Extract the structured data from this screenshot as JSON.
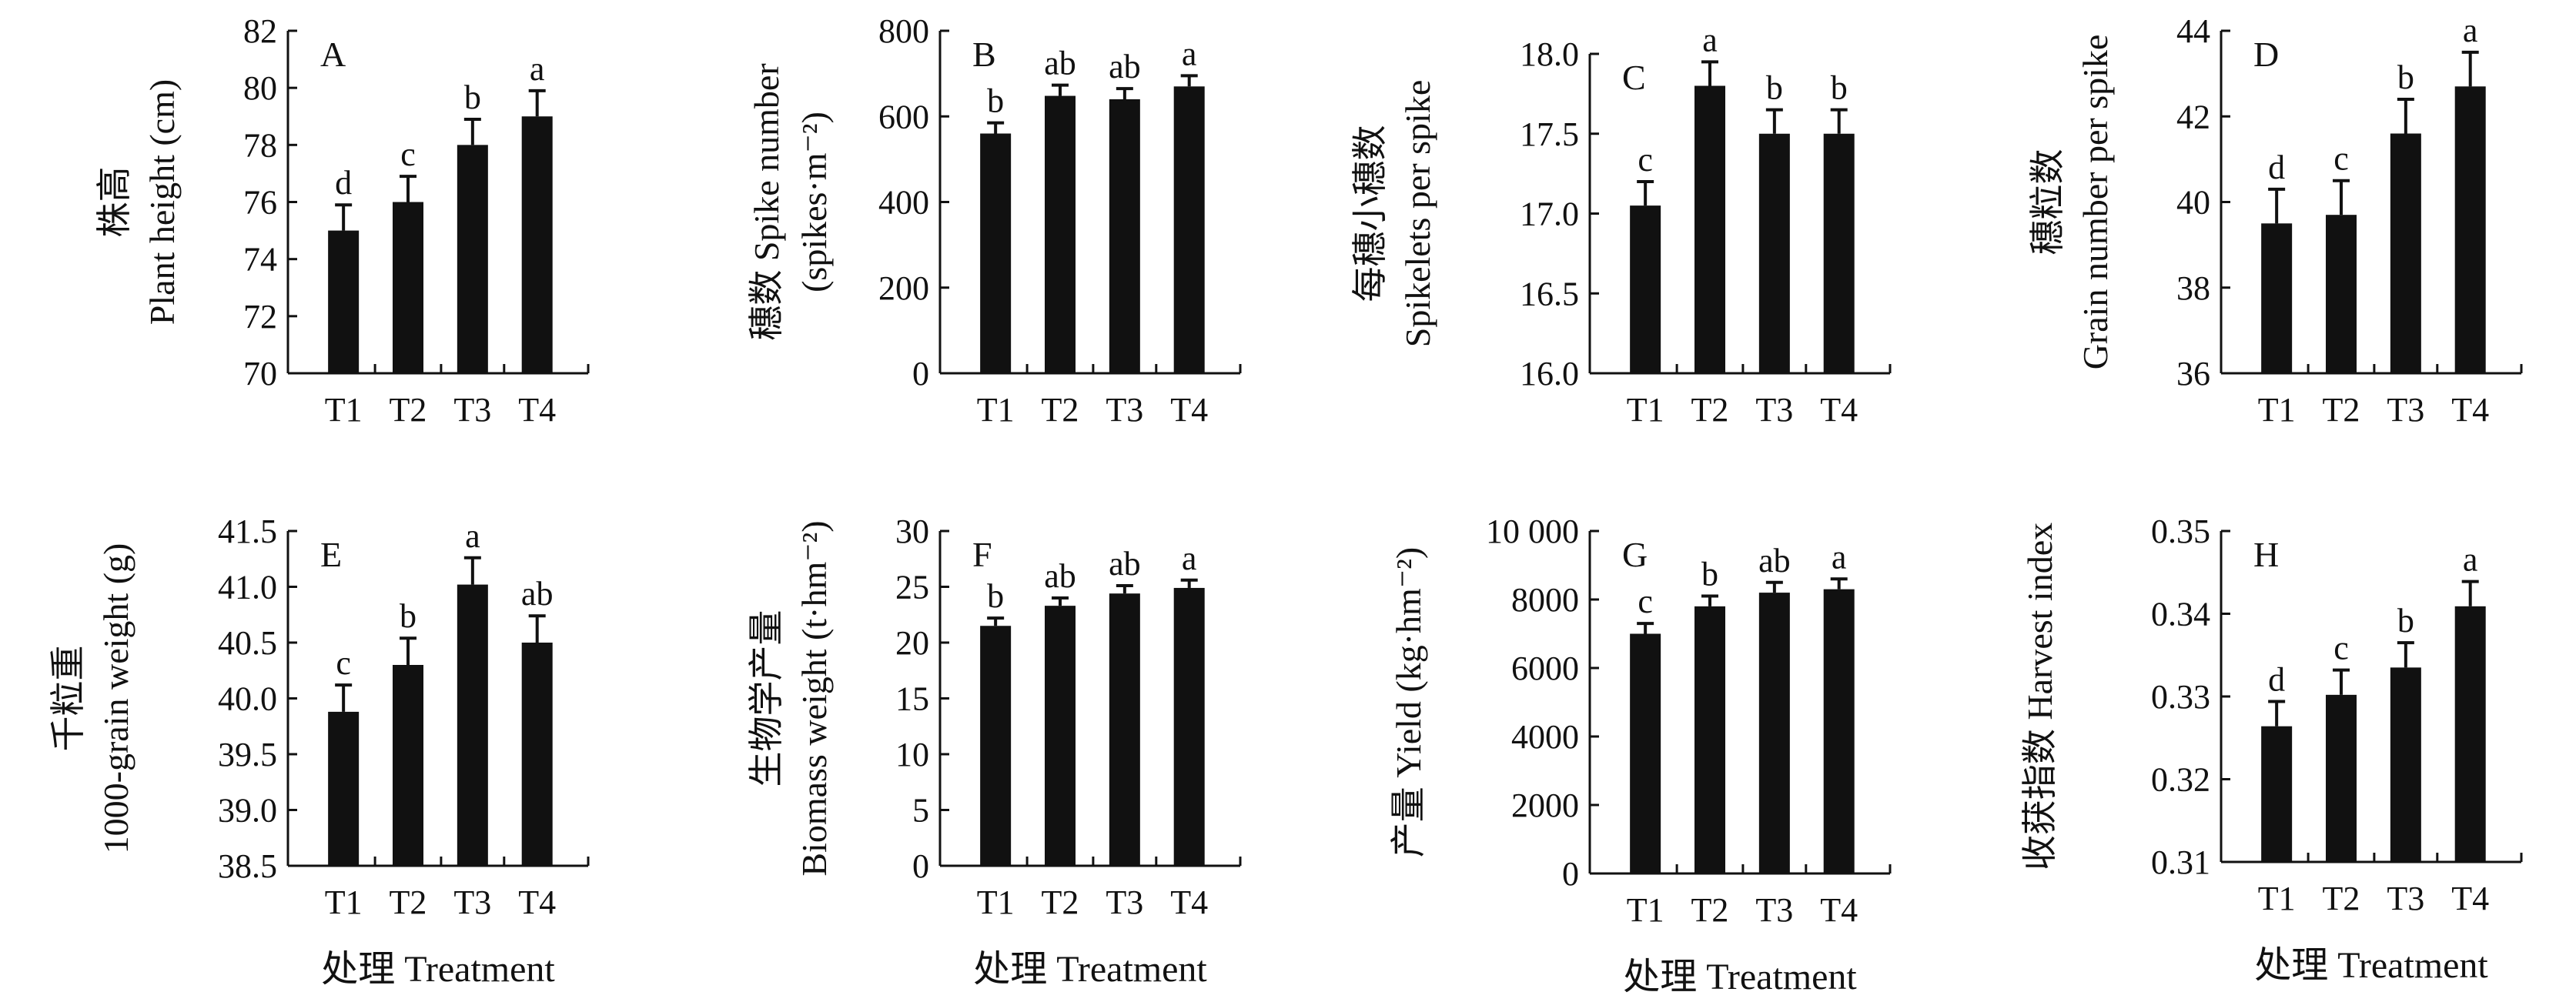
{
  "chart_data": [
    {
      "panel": "A",
      "type": "bar",
      "categories": [
        "T1",
        "T2",
        "T3",
        "T4"
      ],
      "values": [
        75.0,
        76.0,
        78.0,
        79.0
      ],
      "errors": [
        0.9,
        0.9,
        0.9,
        0.9
      ],
      "significance": [
        "d",
        "c",
        "b",
        "a"
      ],
      "ylabel_cn": "株高",
      "ylabel_en": "Plant height (cm)",
      "xlabel": "",
      "ylim": [
        70,
        82
      ],
      "yticks": [
        "70",
        "72",
        "74",
        "76",
        "78",
        "80",
        "82"
      ]
    },
    {
      "panel": "B",
      "type": "bar",
      "categories": [
        "T1",
        "T2",
        "T3",
        "T4"
      ],
      "values": [
        560,
        648,
        640,
        670
      ],
      "errors": [
        25,
        25,
        25,
        25
      ],
      "significance": [
        "b",
        "ab",
        "ab",
        "a"
      ],
      "ylabel_cn": "穗数 Spike number",
      "ylabel_en": "(spikes·m⁻²)",
      "xlabel": "",
      "ylim": [
        0,
        800
      ],
      "yticks": [
        "0",
        "200",
        "400",
        "600",
        "800"
      ]
    },
    {
      "panel": "C",
      "type": "bar",
      "categories": [
        "T1",
        "T2",
        "T3",
        "T4"
      ],
      "values": [
        17.05,
        17.8,
        17.5,
        17.5
      ],
      "errors": [
        0.15,
        0.15,
        0.15,
        0.15
      ],
      "significance": [
        "c",
        "a",
        "b",
        "b"
      ],
      "ylabel_cn": "每穗小穗数",
      "ylabel_en": "Spikelets per spike",
      "xlabel": "",
      "ylim": [
        16.0,
        18.0
      ],
      "yticks": [
        "16.0",
        "16.5",
        "17.0",
        "17.5",
        "18.0"
      ]
    },
    {
      "panel": "D",
      "type": "bar",
      "categories": [
        "T1",
        "T2",
        "T3",
        "T4"
      ],
      "values": [
        39.5,
        39.7,
        41.6,
        42.7
      ],
      "errors": [
        0.8,
        0.8,
        0.8,
        0.8
      ],
      "significance": [
        "d",
        "c",
        "b",
        "a"
      ],
      "ylabel_cn": "穗粒数",
      "ylabel_en": "Grain number per spike",
      "xlabel": "",
      "ylim": [
        36,
        44
      ],
      "yticks": [
        "36",
        "38",
        "40",
        "42",
        "44"
      ]
    },
    {
      "panel": "E",
      "type": "bar",
      "categories": [
        "T1",
        "T2",
        "T3",
        "T4"
      ],
      "values": [
        39.88,
        40.3,
        41.02,
        40.5
      ],
      "errors": [
        0.24,
        0.24,
        0.24,
        0.24
      ],
      "significance": [
        "c",
        "b",
        "a",
        "ab"
      ],
      "ylabel_cn": "千粒重",
      "ylabel_en": "1000-grain weight (g)",
      "xlabel": "处理 Treatment",
      "ylim": [
        38.5,
        41.5
      ],
      "yticks": [
        "38.5",
        "39.0",
        "39.5",
        "40.0",
        "40.5",
        "41.0",
        "41.5"
      ]
    },
    {
      "panel": "F",
      "type": "bar",
      "categories": [
        "T1",
        "T2",
        "T3",
        "T4"
      ],
      "values": [
        21.5,
        23.3,
        24.4,
        24.9
      ],
      "errors": [
        0.7,
        0.7,
        0.7,
        0.7
      ],
      "significance": [
        "b",
        "ab",
        "ab",
        "a"
      ],
      "ylabel_cn": "生物学产量",
      "ylabel_en": "Biomass weight (t·hm⁻²)",
      "xlabel": "处理 Treatment",
      "ylim": [
        0,
        30
      ],
      "yticks": [
        "0",
        "5",
        "10",
        "15",
        "20",
        "25",
        "30"
      ]
    },
    {
      "panel": "G",
      "type": "bar",
      "categories": [
        "T1",
        "T2",
        "T3",
        "T4"
      ],
      "values": [
        7000,
        7800,
        8200,
        8300
      ],
      "errors": [
        300,
        300,
        300,
        300
      ],
      "significance": [
        "c",
        "b",
        "ab",
        "a"
      ],
      "ylabel_cn": "产量 Yield (kg·hm⁻²)",
      "ylabel_en": "",
      "xlabel": "处理 Treatment",
      "ylim": [
        0,
        10000
      ],
      "yticks": [
        "0",
        "2000",
        "4000",
        "6000",
        "8000",
        "10 000"
      ]
    },
    {
      "panel": "H",
      "type": "bar",
      "categories": [
        "T1",
        "T2",
        "T3",
        "T4"
      ],
      "values": [
        0.3264,
        0.3302,
        0.3335,
        0.3409
      ],
      "errors": [
        0.003,
        0.003,
        0.003,
        0.003
      ],
      "significance": [
        "d",
        "c",
        "b",
        "a"
      ],
      "ylabel_cn": "收获指数 Harvest index",
      "ylabel_en": "",
      "xlabel": "处理 Treatment",
      "ylim": [
        0.31,
        0.35
      ],
      "yticks": [
        "0.31",
        "0.32",
        "0.33",
        "0.34",
        "0.35"
      ]
    }
  ]
}
